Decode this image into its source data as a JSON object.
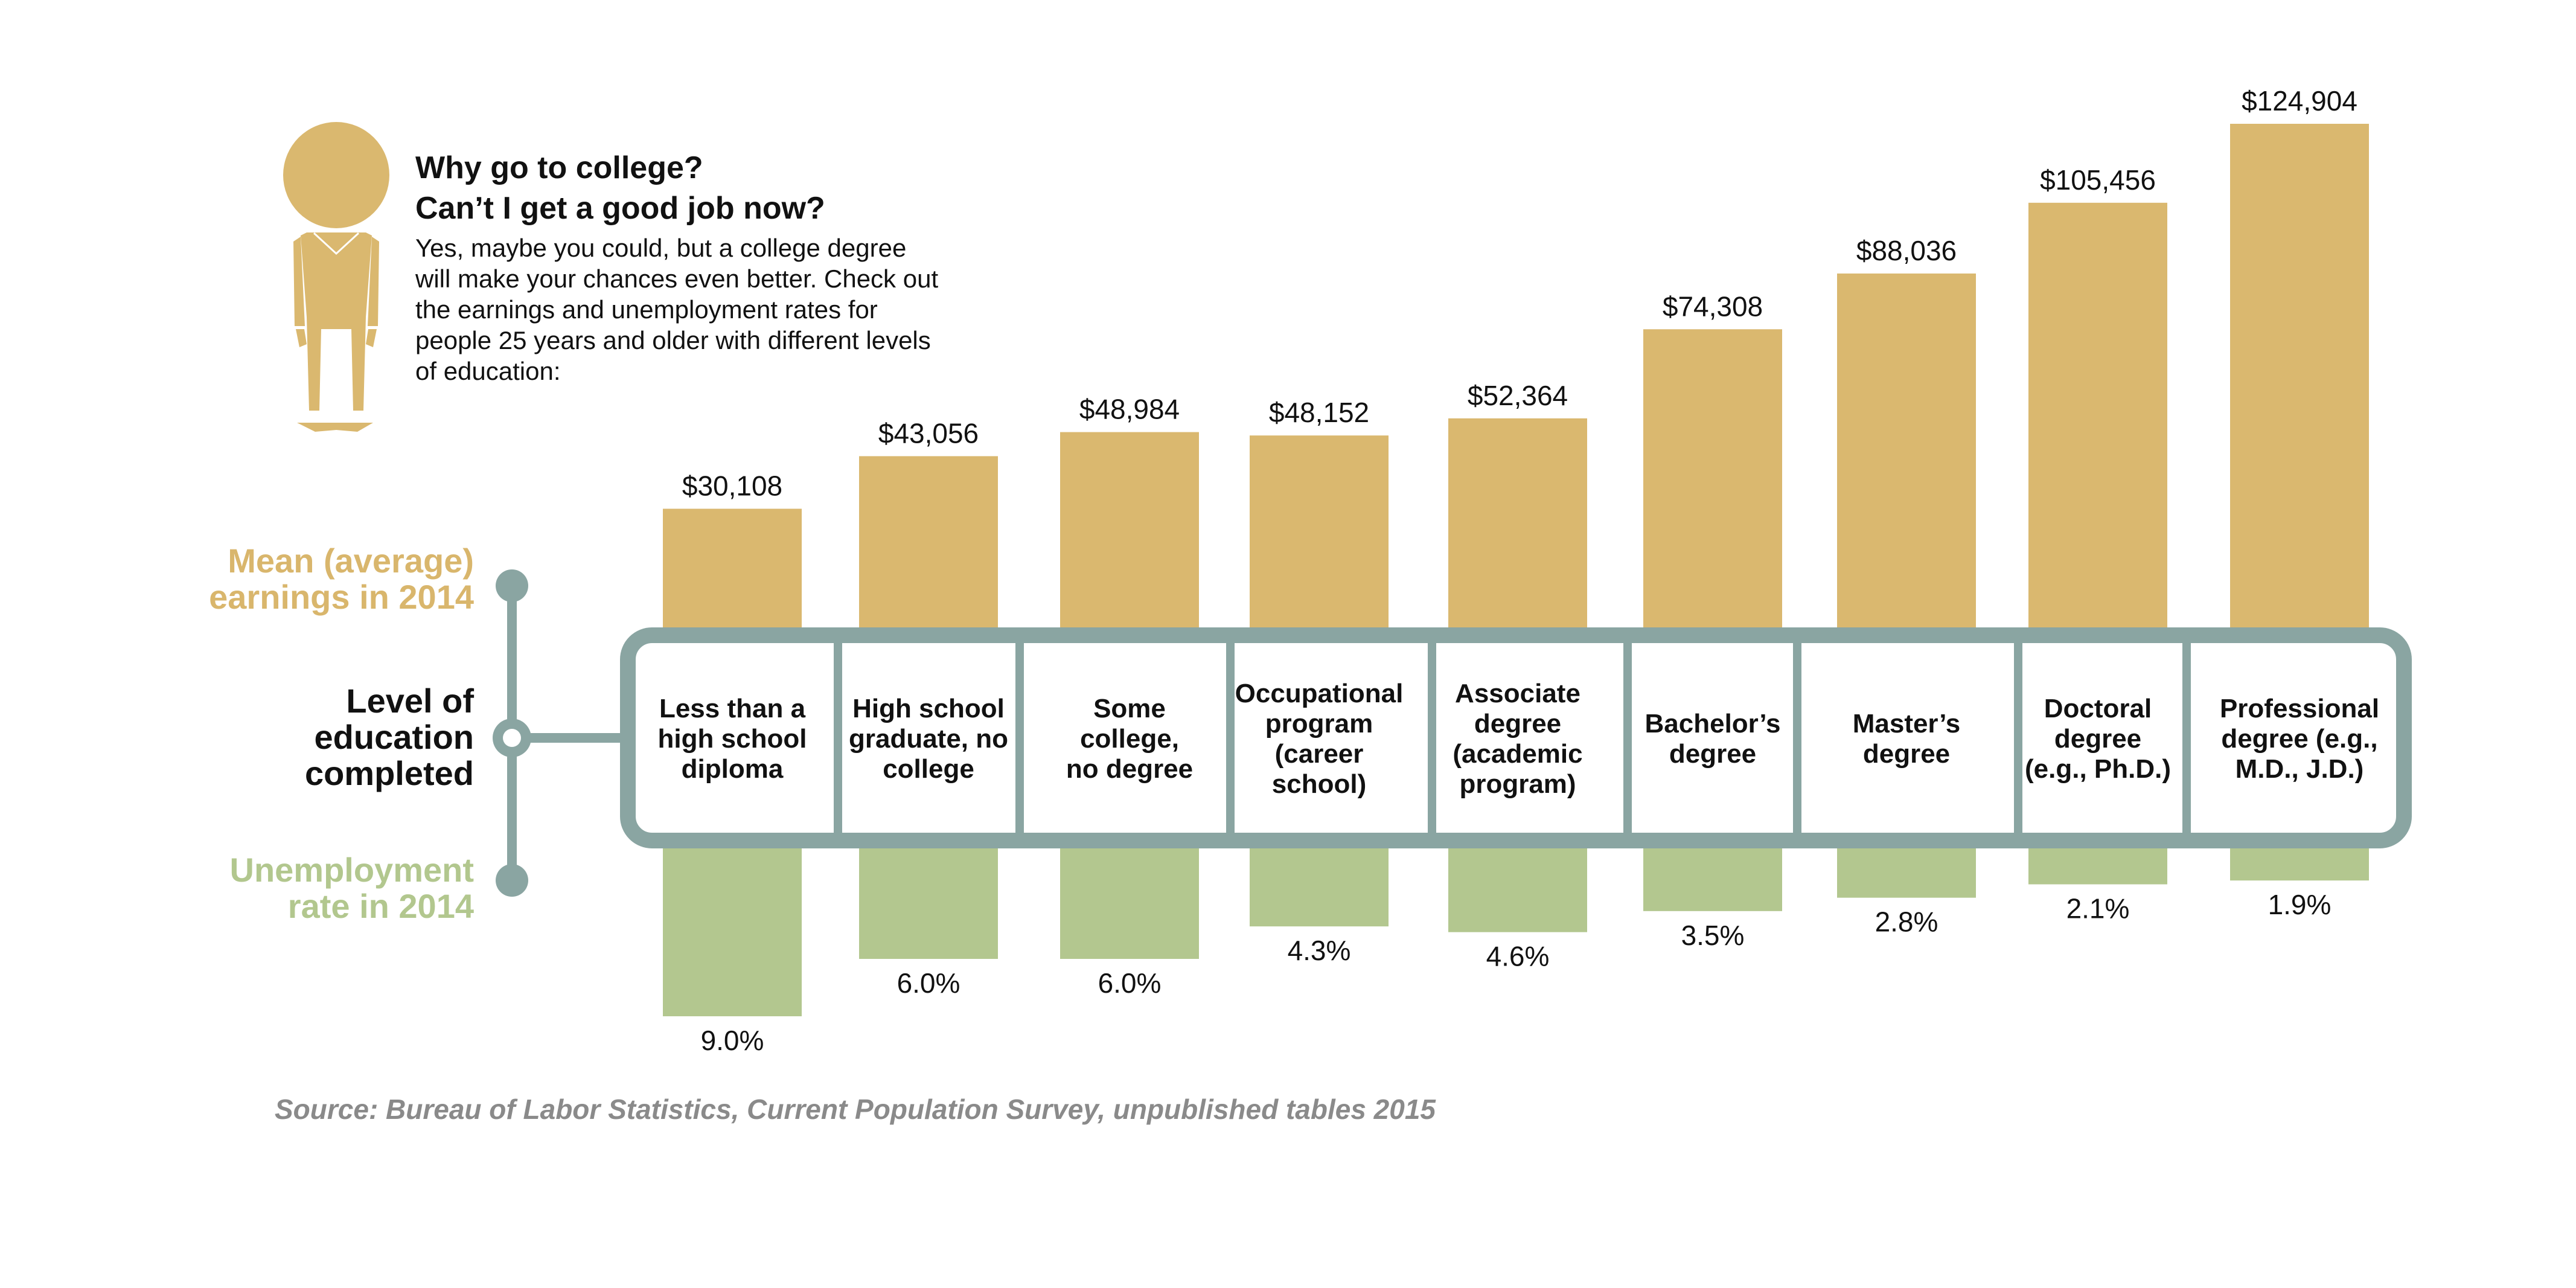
{
  "intro": {
    "heading_line1": "Why go to college?",
    "heading_line2": "Can’t I get a good job now?",
    "body_lines": [
      "Yes, maybe you could, but a college degree",
      "will make your chances even better. Check out",
      "the earnings and unemployment rates for",
      "people 25 years and older with different levels",
      "of education:"
    ]
  },
  "legend": {
    "earnings_line1": "Mean (average)",
    "earnings_line2": "earnings in 2014",
    "level_line1": "Level of",
    "level_line2": "education",
    "level_line3": "completed",
    "unemp_line1": "Unemployment",
    "unemp_line2": "rate in 2014"
  },
  "source": "Source: Bureau of Labor Statistics, Current Population Survey, unpublished tables 2015",
  "colors": {
    "earnings": "#dab86f",
    "unemployment": "#b3c78f",
    "frame": "#8aa5a2",
    "earnings_label": "#d9b66c",
    "unemp_label": "#b2c78e",
    "text": "#111111",
    "source": "#8a8a8a"
  },
  "chart_data": {
    "type": "bar",
    "categories": [
      [
        "Less than a",
        "high school",
        "diploma"
      ],
      [
        "High school",
        "graduate, no",
        "college"
      ],
      [
        "Some",
        "college,",
        "no degree"
      ],
      [
        "Occupational",
        "program",
        "(career",
        "school)"
      ],
      [
        "Associate",
        "degree",
        "(academic",
        "program)"
      ],
      [
        "Bachelor’s",
        "degree"
      ],
      [
        "Master’s",
        "degree"
      ],
      [
        "Doctoral",
        "degree",
        "(e.g., Ph.D.)"
      ],
      [
        "Professional",
        "degree (e.g.,",
        "M.D., J.D.)"
      ]
    ],
    "series": [
      {
        "name": "Mean (average) earnings in 2014",
        "values": [
          30108,
          43056,
          48984,
          48152,
          52364,
          74308,
          88036,
          105456,
          124904
        ],
        "labels": [
          "$30,108",
          "$43,056",
          "$48,984",
          "$48,152",
          "$52,364",
          "$74,308",
          "$88,036",
          "$105,456",
          "$124,904"
        ]
      },
      {
        "name": "Unemployment rate in 2014",
        "values": [
          9.0,
          6.0,
          6.0,
          4.3,
          4.6,
          3.5,
          2.8,
          2.1,
          1.9
        ],
        "labels": [
          "9.0%",
          "6.0%",
          "6.0%",
          "4.3%",
          "4.6%",
          "3.5%",
          "2.8%",
          "2.1%",
          "1.9%"
        ]
      }
    ],
    "title": "Why go to college? Can’t I get a good job now?",
    "xlabel": "Level of education completed",
    "ylabel": ""
  }
}
